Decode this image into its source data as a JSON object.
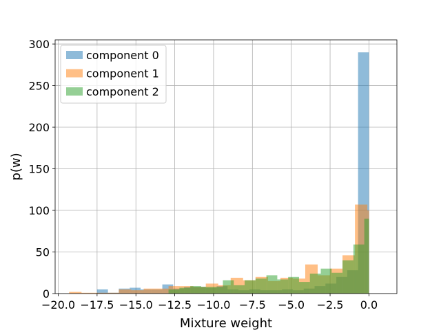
{
  "chart_data": {
    "type": "bar",
    "subtype": "overlaid-histogram",
    "title": "",
    "xlabel": "Mixture weight",
    "ylabel": "p(w)",
    "xlim": [
      -20.2,
      1.8
    ],
    "ylim": [
      0,
      305
    ],
    "xticks": [
      -20,
      -17.5,
      -15,
      -12.5,
      -10,
      -7.5,
      -5,
      -2.5,
      0
    ],
    "xtick_labels": [
      "−20.0",
      "−17.5",
      "−15.0",
      "−12.5",
      "−10.0",
      "−7.5",
      "−5.0",
      "−2.5",
      "0.0"
    ],
    "yticks": [
      0,
      50,
      100,
      150,
      200,
      250,
      300
    ],
    "ytick_labels": [
      "0",
      "50",
      "100",
      "150",
      "200",
      "250",
      "300"
    ],
    "grid": true,
    "legend_position": "top-left",
    "bar_opacity": 0.5,
    "series": [
      {
        "name": "component 0",
        "color": "#1f77b4",
        "bins": [
          [
            -17.5,
            -16.8,
            5
          ],
          [
            -16.8,
            -16.1,
            1
          ],
          [
            -16.1,
            -15.4,
            6
          ],
          [
            -15.4,
            -14.7,
            7
          ],
          [
            -14.7,
            -14.0,
            5
          ],
          [
            -14.0,
            -13.3,
            5
          ],
          [
            -13.3,
            -12.6,
            11
          ],
          [
            -12.6,
            -11.9,
            6
          ],
          [
            -11.9,
            -11.2,
            8
          ],
          [
            -11.2,
            -10.5,
            8
          ],
          [
            -10.5,
            -9.8,
            7
          ],
          [
            -9.8,
            -9.1,
            9
          ],
          [
            -9.1,
            -8.4,
            5
          ],
          [
            -8.4,
            -7.7,
            4
          ],
          [
            -7.7,
            -7.0,
            5
          ],
          [
            -7.0,
            -6.3,
            4
          ],
          [
            -6.3,
            -5.6,
            4
          ],
          [
            -5.6,
            -4.9,
            5
          ],
          [
            -4.9,
            -4.2,
            4
          ],
          [
            -4.2,
            -3.5,
            6
          ],
          [
            -3.5,
            -2.8,
            9
          ],
          [
            -2.8,
            -2.1,
            12
          ],
          [
            -2.1,
            -1.4,
            20
          ],
          [
            -1.4,
            -0.7,
            28
          ],
          [
            -0.7,
            0.0,
            290
          ]
        ]
      },
      {
        "name": "component 1",
        "color": "#ff7f0e",
        "bins": [
          [
            -19.3,
            -18.5,
            2
          ],
          [
            -18.5,
            -17.7,
            1
          ],
          [
            -17.7,
            -16.9,
            1
          ],
          [
            -16.9,
            -16.1,
            1
          ],
          [
            -16.1,
            -15.3,
            5
          ],
          [
            -15.3,
            -14.5,
            4
          ],
          [
            -14.5,
            -13.7,
            6
          ],
          [
            -13.7,
            -12.9,
            6
          ],
          [
            -12.9,
            -12.1,
            9
          ],
          [
            -12.1,
            -11.3,
            9
          ],
          [
            -11.3,
            -10.5,
            8
          ],
          [
            -10.5,
            -9.7,
            12
          ],
          [
            -9.7,
            -8.9,
            10
          ],
          [
            -8.9,
            -8.1,
            19
          ],
          [
            -8.1,
            -7.3,
            16
          ],
          [
            -7.3,
            -6.5,
            20
          ],
          [
            -6.5,
            -5.7,
            15
          ],
          [
            -5.7,
            -4.9,
            19
          ],
          [
            -4.9,
            -4.1,
            18
          ],
          [
            -4.1,
            -3.3,
            35
          ],
          [
            -3.3,
            -2.5,
            22
          ],
          [
            -2.5,
            -1.7,
            30
          ],
          [
            -1.7,
            -0.9,
            46
          ],
          [
            -0.9,
            -0.1,
            107
          ],
          [
            -0.1,
            0.0,
            100
          ]
        ]
      },
      {
        "name": "component 2",
        "color": "#2ca02c",
        "bins": [
          [
            -12.9,
            -12.2,
            5
          ],
          [
            -12.2,
            -11.5,
            7
          ],
          [
            -11.5,
            -10.8,
            9
          ],
          [
            -10.8,
            -10.1,
            8
          ],
          [
            -10.1,
            -9.4,
            8
          ],
          [
            -9.4,
            -8.7,
            16
          ],
          [
            -8.7,
            -8.0,
            10
          ],
          [
            -8.0,
            -7.3,
            16
          ],
          [
            -7.3,
            -6.6,
            18
          ],
          [
            -6.6,
            -5.9,
            22
          ],
          [
            -5.9,
            -5.2,
            17
          ],
          [
            -5.2,
            -4.5,
            20
          ],
          [
            -4.5,
            -3.8,
            14
          ],
          [
            -3.8,
            -3.1,
            24
          ],
          [
            -3.1,
            -2.4,
            30
          ],
          [
            -2.4,
            -1.7,
            25
          ],
          [
            -1.7,
            -1.0,
            40
          ],
          [
            -1.0,
            -0.3,
            59
          ],
          [
            -0.3,
            0.0,
            90
          ]
        ]
      }
    ]
  }
}
